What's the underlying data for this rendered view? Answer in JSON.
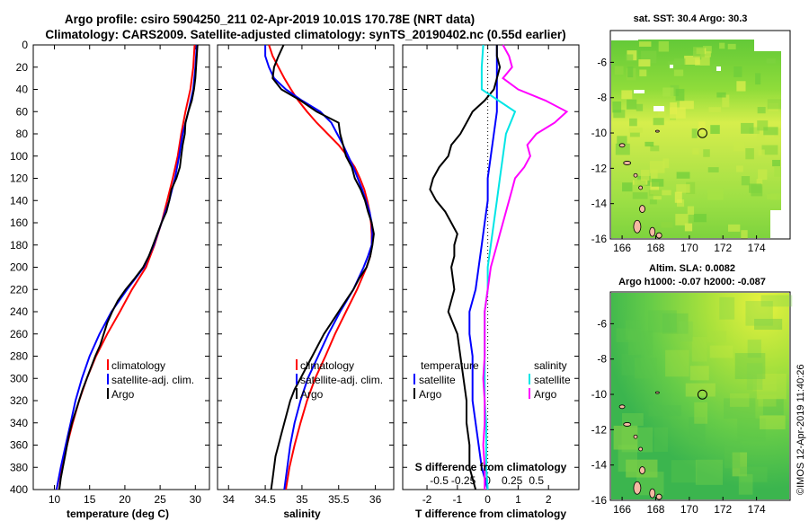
{
  "header": {
    "title_line1": "Argo profile: csiro 5904250_211 02-Apr-2019 10.01S 170.78E (NRT data)",
    "title_line2": "Climatology: CARS2009. Satellite-adjusted climatology: synTS_20190402.nc (0.55d earlier)"
  },
  "colors": {
    "climatology": "#ff0000",
    "satellite": "#0000ff",
    "argo": "#000000",
    "sal_satellite": "#00e5e5",
    "sal_argo": "#ff00ff"
  },
  "chart_data": [
    {
      "id": "temperature",
      "type": "line",
      "xlabel": "temperature (deg C)",
      "xlim": [
        7,
        32
      ],
      "xticks": [
        10,
        15,
        20,
        25,
        30
      ],
      "ylim": [
        400,
        0
      ],
      "yticks": [
        0,
        20,
        40,
        60,
        80,
        100,
        120,
        140,
        160,
        180,
        200,
        220,
        240,
        260,
        280,
        300,
        320,
        340,
        360,
        380,
        400
      ],
      "legend": [
        "climatology",
        "satellite-adj. clim.",
        "Argo"
      ],
      "series": [
        {
          "name": "climatology",
          "depth": [
            0,
            20,
            40,
            60,
            80,
            100,
            120,
            140,
            160,
            180,
            200,
            220,
            240,
            260,
            280,
            300,
            320,
            340,
            360,
            380,
            400
          ],
          "values": [
            29.9,
            29.7,
            29.3,
            28.6,
            28.0,
            27.5,
            26.8,
            26.0,
            25.2,
            24.2,
            23.0,
            21.0,
            19.3,
            17.5,
            15.9,
            14.6,
            13.5,
            12.6,
            11.8,
            11.0,
            10.3
          ]
        },
        {
          "name": "satellite-adj. clim.",
          "depth": [
            0,
            20,
            40,
            60,
            80,
            100,
            120,
            140,
            160,
            180,
            200,
            220,
            240,
            260,
            280,
            300,
            320,
            340,
            360,
            380,
            400
          ],
          "values": [
            30.2,
            30.0,
            29.7,
            29.0,
            28.2,
            27.7,
            27.1,
            26.3,
            25.2,
            24.1,
            22.7,
            20.3,
            18.1,
            16.4,
            15.0,
            13.9,
            13.0,
            12.3,
            11.6,
            10.9,
            10.3
          ]
        },
        {
          "name": "Argo",
          "depth": [
            0,
            10,
            20,
            30,
            40,
            50,
            60,
            70,
            80,
            90,
            100,
            110,
            120,
            130,
            140,
            150,
            160,
            170,
            180,
            190,
            200,
            210,
            220,
            230,
            240,
            250,
            260,
            270,
            280,
            290,
            300,
            310,
            320,
            330,
            340,
            350,
            360,
            370,
            380,
            390,
            400
          ],
          "values": [
            30.3,
            30.2,
            30.1,
            30.0,
            29.8,
            29.5,
            29.0,
            28.6,
            28.5,
            28.2,
            28.0,
            27.8,
            27.3,
            26.6,
            26.3,
            25.9,
            25.2,
            24.6,
            24.0,
            23.4,
            22.6,
            21.4,
            20.1,
            19.0,
            18.2,
            17.5,
            17.0,
            16.5,
            15.8,
            15.2,
            14.6,
            14.0,
            13.5,
            13.0,
            12.5,
            12.1,
            11.8,
            11.5,
            11.2,
            10.9,
            10.7
          ]
        }
      ]
    },
    {
      "id": "salinity",
      "type": "line",
      "xlabel": "salinity",
      "xlim": [
        33.85,
        36.25
      ],
      "xticks": [
        34,
        34.5,
        35,
        35.5,
        36
      ],
      "ylim": [
        400,
        0
      ],
      "legend": [
        "climatology",
        "satellite-adj. clim.",
        "Argo"
      ],
      "series": [
        {
          "name": "climatology",
          "depth": [
            0,
            10,
            20,
            30,
            40,
            50,
            60,
            70,
            80,
            90,
            100,
            110,
            120,
            130,
            140,
            150,
            160,
            170,
            180,
            190,
            200,
            220,
            240,
            260,
            280,
            300,
            320,
            340,
            360,
            380,
            400
          ],
          "values": [
            34.55,
            34.6,
            34.68,
            34.76,
            34.85,
            34.95,
            35.07,
            35.2,
            35.35,
            35.5,
            35.62,
            35.72,
            35.79,
            35.85,
            35.89,
            35.92,
            35.94,
            35.95,
            35.95,
            35.93,
            35.88,
            35.75,
            35.6,
            35.45,
            35.32,
            35.18,
            35.07,
            34.98,
            34.9,
            34.83,
            34.78
          ]
        },
        {
          "name": "satellite-adj. clim.",
          "depth": [
            0,
            10,
            20,
            30,
            40,
            50,
            60,
            70,
            80,
            90,
            100,
            110,
            120,
            130,
            140,
            150,
            160,
            170,
            180,
            190,
            200,
            220,
            240,
            260,
            280,
            300,
            320,
            340,
            360,
            380,
            400
          ],
          "values": [
            34.5,
            34.5,
            34.55,
            34.62,
            34.78,
            35.0,
            35.25,
            35.4,
            35.48,
            35.56,
            35.63,
            35.7,
            35.76,
            35.82,
            35.87,
            35.92,
            35.95,
            35.96,
            35.95,
            35.9,
            35.84,
            35.7,
            35.52,
            35.36,
            35.22,
            35.08,
            34.98,
            34.9,
            34.84,
            34.8,
            34.76
          ]
        },
        {
          "name": "Argo",
          "depth": [
            0,
            10,
            20,
            30,
            40,
            50,
            60,
            70,
            80,
            90,
            100,
            110,
            120,
            130,
            140,
            150,
            160,
            170,
            180,
            190,
            200,
            210,
            220,
            230,
            240,
            250,
            260,
            270,
            280,
            290,
            300,
            310,
            320,
            330,
            340,
            350,
            360,
            370,
            380,
            390,
            400
          ],
          "values": [
            34.75,
            34.68,
            34.62,
            34.6,
            34.72,
            34.98,
            35.2,
            35.5,
            35.52,
            35.56,
            35.6,
            35.68,
            35.72,
            35.8,
            35.86,
            35.9,
            35.95,
            35.98,
            35.96,
            35.93,
            35.88,
            35.78,
            35.7,
            35.6,
            35.5,
            35.4,
            35.3,
            35.22,
            35.14,
            35.06,
            34.98,
            34.9,
            34.84,
            34.8,
            34.76,
            34.72,
            34.68,
            34.64,
            34.62,
            34.6,
            34.58
          ]
        }
      ]
    },
    {
      "id": "differences",
      "type": "line",
      "xlabel": "T difference from climatology",
      "xlabel_top": "S difference from climatology",
      "xlim": [
        -2.8,
        3.0
      ],
      "xticks": [
        -2,
        -1,
        0,
        1,
        2
      ],
      "xticks_top_labels": [
        "-0.5",
        "-0.25",
        "0",
        "0.25",
        "0.5"
      ],
      "xticks_top_positions": [
        -1.6,
        -0.8,
        0,
        0.8,
        1.6
      ],
      "ylim": [
        400,
        0
      ],
      "legend_left_title": "temperature",
      "legend_right_title": "salinity",
      "legend_left": [
        "satellite",
        "Argo"
      ],
      "legend_right": [
        "satellite",
        "Argo"
      ],
      "series": [
        {
          "name": "temperature satellite",
          "depth": [
            0,
            20,
            40,
            60,
            80,
            100,
            120,
            140,
            160,
            180,
            200,
            220,
            240,
            260,
            280,
            300,
            320,
            340,
            360,
            380,
            400
          ],
          "values": [
            0.3,
            0.3,
            0.3,
            0.3,
            0.2,
            0.1,
            0.0,
            0.0,
            -0.1,
            -0.2,
            -0.3,
            -0.4,
            -0.6,
            -0.6,
            -0.5,
            -0.5,
            -0.5,
            -0.4,
            -0.3,
            -0.2,
            0.0
          ]
        },
        {
          "name": "temperature Argo",
          "depth": [
            0,
            10,
            20,
            30,
            40,
            50,
            60,
            70,
            80,
            90,
            100,
            110,
            120,
            130,
            140,
            150,
            160,
            170,
            180,
            190,
            200,
            220,
            240,
            260,
            280,
            300,
            320,
            340,
            360,
            380,
            400
          ],
          "values": [
            0.3,
            0.3,
            0.4,
            0.3,
            0.2,
            -0.1,
            -0.5,
            -0.7,
            -0.9,
            -1.2,
            -1.3,
            -1.6,
            -1.8,
            -1.9,
            -1.7,
            -1.4,
            -1.2,
            -1.0,
            -1.1,
            -1.1,
            -1.2,
            -1.1,
            -1.3,
            -1.0,
            -0.9,
            -0.8,
            -0.7,
            -0.7,
            -0.6,
            -0.6,
            -0.4
          ]
        },
        {
          "name": "salinity satellite",
          "depth": [
            0,
            20,
            40,
            60,
            80,
            100,
            120,
            140,
            160,
            180,
            200,
            220,
            240,
            260,
            280,
            300,
            320,
            340,
            360,
            380,
            400
          ],
          "values": [
            -0.15,
            -0.2,
            -0.2,
            0.9,
            0.6,
            0.5,
            0.4,
            0.3,
            0.2,
            0.1,
            0.0,
            0.0,
            -0.1,
            -0.1,
            -0.1,
            -0.1,
            -0.1,
            -0.05,
            -0.05,
            -0.05,
            0.0
          ]
        },
        {
          "name": "salinity Argo",
          "depth": [
            0,
            10,
            20,
            30,
            40,
            50,
            60,
            70,
            80,
            90,
            100,
            110,
            120,
            130,
            140,
            150,
            160,
            170,
            180,
            190,
            200,
            220,
            240,
            260,
            280,
            300,
            320,
            340,
            360,
            380,
            400
          ],
          "values": [
            0.5,
            0.7,
            0.8,
            0.5,
            1.0,
            1.9,
            2.6,
            2.2,
            1.6,
            1.3,
            1.4,
            1.2,
            0.9,
            0.8,
            0.7,
            0.6,
            0.5,
            0.4,
            0.3,
            0.2,
            0.1,
            0.0,
            -0.1,
            -0.1,
            -0.1,
            -0.15,
            -0.1,
            -0.1,
            -0.15,
            -0.1,
            -0.1
          ]
        }
      ]
    },
    {
      "id": "sst_map",
      "type": "heatmap",
      "title": "sat. SST: 30.4 Argo: 30.3",
      "xlim": [
        165.3,
        176.0
      ],
      "ylim": [
        -16,
        -4.2
      ],
      "xticks": [
        166,
        168,
        170,
        172,
        174
      ],
      "yticks": [
        -6,
        -8,
        -10,
        -12,
        -14,
        -16
      ],
      "argo_position": {
        "lon": 170.78,
        "lat": -10.01
      }
    },
    {
      "id": "sla_map",
      "type": "heatmap",
      "title_line1": "Altim. SLA: 0.0082",
      "title_line2": "Argo h1000: -0.07 h2000: -0.087",
      "xlim": [
        165.3,
        176.0
      ],
      "ylim": [
        -16,
        -4.2
      ],
      "xticks": [
        166,
        168,
        170,
        172,
        174
      ],
      "yticks": [
        -6,
        -8,
        -10,
        -12,
        -14,
        -16
      ],
      "argo_position": {
        "lon": 170.78,
        "lat": -10.01
      }
    }
  ],
  "watermark": "©IMOS 12-Apr-2019 11:40:26"
}
